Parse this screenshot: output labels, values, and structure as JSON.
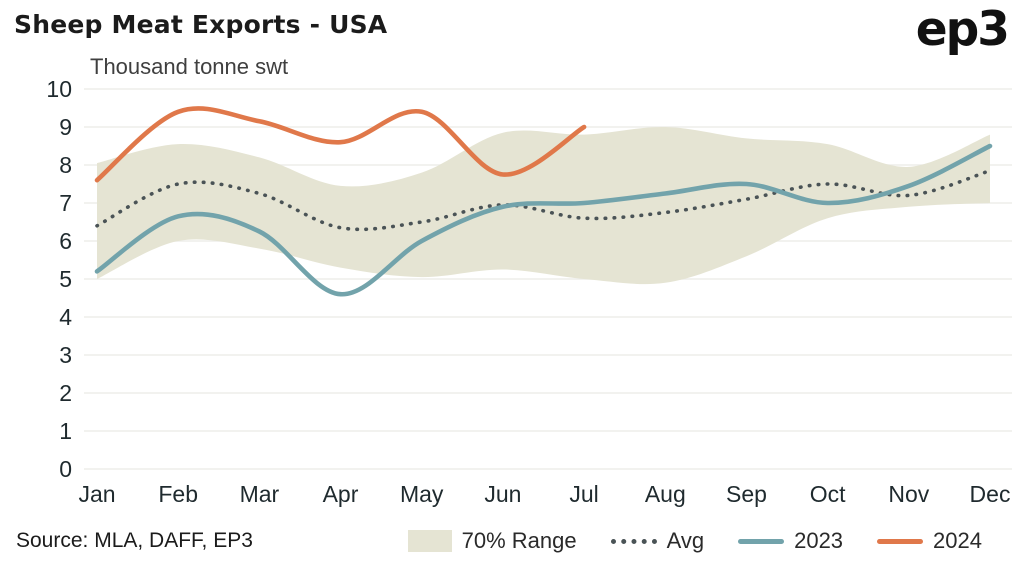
{
  "header": {
    "title": "Sheep Meat Exports - USA",
    "subtitle": "Thousand tonne swt",
    "logo": "ep3"
  },
  "footer": {
    "source": "Source: MLA, DAFF, EP3"
  },
  "legend": {
    "range": "70% Range",
    "avg": "Avg",
    "y2023": "2023",
    "y2024": "2024"
  },
  "colors": {
    "band": "#e5e4d3",
    "avg": "#4a5356",
    "line2023": "#72a3ab",
    "line2024": "#e0784a",
    "grid": "#ededea",
    "text": "#1f2a2e"
  },
  "chart_data": {
    "type": "line",
    "title": "Sheep Meat Exports - USA",
    "xlabel": "",
    "ylabel": "Thousand tonne swt",
    "ylim": [
      0,
      10
    ],
    "yticks": [
      0,
      1,
      2,
      3,
      4,
      5,
      6,
      7,
      8,
      9,
      10
    ],
    "grid": true,
    "legend_position": "bottom",
    "categories": [
      "Jan",
      "Feb",
      "Mar",
      "Apr",
      "May",
      "Jun",
      "Jul",
      "Aug",
      "Sep",
      "Oct",
      "Nov",
      "Dec"
    ],
    "band": {
      "name": "70% Range",
      "upper": [
        8.05,
        8.55,
        8.2,
        7.45,
        7.8,
        8.85,
        8.8,
        9.0,
        8.7,
        8.55,
        7.95,
        8.8
      ],
      "lower": [
        5.0,
        6.0,
        5.8,
        5.3,
        5.05,
        5.25,
        5.0,
        4.9,
        5.6,
        6.6,
        6.9,
        7.0
      ]
    },
    "series": [
      {
        "name": "Avg",
        "style": "dotted",
        "color": "#4a5356",
        "values": [
          6.4,
          7.5,
          7.25,
          6.35,
          6.5,
          6.95,
          6.6,
          6.75,
          7.1,
          7.5,
          7.2,
          7.85
        ]
      },
      {
        "name": "2023",
        "style": "solid",
        "color": "#72a3ab",
        "values": [
          5.2,
          6.65,
          6.25,
          4.6,
          6.0,
          6.9,
          7.0,
          7.25,
          7.5,
          7.0,
          7.45,
          8.5
        ]
      },
      {
        "name": "2024",
        "style": "solid",
        "color": "#e0784a",
        "values": [
          7.6,
          9.4,
          9.15,
          8.6,
          9.4,
          7.75,
          9.0
        ]
      }
    ]
  }
}
